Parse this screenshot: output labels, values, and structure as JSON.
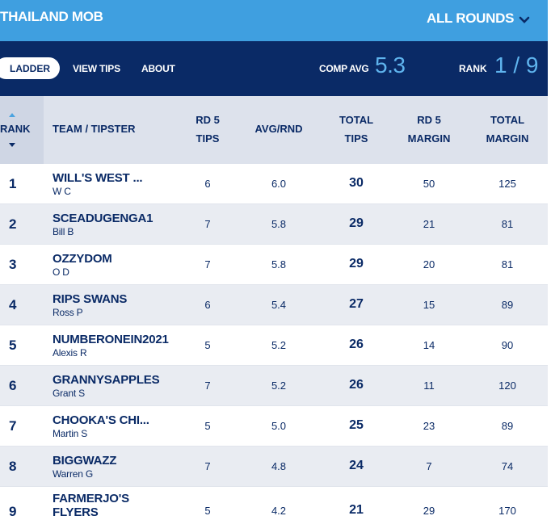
{
  "header": {
    "comp_name": "THAILAND MOB",
    "rounds_label": "ALL ROUNDS"
  },
  "nav": {
    "tabs": [
      {
        "label": "LADDER",
        "active": true
      },
      {
        "label": "VIEW TIPS",
        "active": false
      },
      {
        "label": "ABOUT",
        "active": false
      }
    ],
    "comp_avg_label": "COMP AVG",
    "comp_avg_value": "5.3",
    "rank_label": "RANK",
    "rank_value": "1 / 9"
  },
  "table": {
    "columns": {
      "rank": "RANK",
      "team": "TEAM / TIPSTER",
      "rd_tips_1": "RD 5",
      "rd_tips_2": "TIPS",
      "avg": "AVG/RND",
      "total_tips_1": "TOTAL",
      "total_tips_2": "TIPS",
      "rd_margin_1": "RD 5",
      "rd_margin_2": "MARGIN",
      "total_margin_1": "TOTAL",
      "total_margin_2": "MARGIN"
    },
    "rows": [
      {
        "rank": "1",
        "team": "WILL'S WEST ...",
        "tipster": "W C",
        "rd_tips": "6",
        "avg": "6.0",
        "total_tips": "30",
        "rd_margin": "50",
        "total_margin": "125"
      },
      {
        "rank": "2",
        "team": "SCEADUGENGA1",
        "tipster": "Bill B",
        "rd_tips": "7",
        "avg": "5.8",
        "total_tips": "29",
        "rd_margin": "21",
        "total_margin": "81"
      },
      {
        "rank": "3",
        "team": "OZZYDOM",
        "tipster": "O D",
        "rd_tips": "7",
        "avg": "5.8",
        "total_tips": "29",
        "rd_margin": "20",
        "total_margin": "81"
      },
      {
        "rank": "4",
        "team": "RIPS SWANS",
        "tipster": "Ross P",
        "rd_tips": "6",
        "avg": "5.4",
        "total_tips": "27",
        "rd_margin": "15",
        "total_margin": "89"
      },
      {
        "rank": "5",
        "team": "NUMBERONEIN2021",
        "tipster": "Alexis R",
        "rd_tips": "5",
        "avg": "5.2",
        "total_tips": "26",
        "rd_margin": "14",
        "total_margin": "90"
      },
      {
        "rank": "6",
        "team": "GRANNYSAPPLES",
        "tipster": "Grant S",
        "rd_tips": "7",
        "avg": "5.2",
        "total_tips": "26",
        "rd_margin": "11",
        "total_margin": "120"
      },
      {
        "rank": "7",
        "team": "CHOOKA'S CHI...",
        "tipster": "Martin S",
        "rd_tips": "5",
        "avg": "5.0",
        "total_tips": "25",
        "rd_margin": "23",
        "total_margin": "89"
      },
      {
        "rank": "8",
        "team": "BIGGWAZZ",
        "tipster": "Warren G",
        "rd_tips": "7",
        "avg": "4.8",
        "total_tips": "24",
        "rd_margin": "7",
        "total_margin": "74"
      },
      {
        "rank": "9",
        "team": "FARMERJO'S FLYERS",
        "tipster": "",
        "rd_tips": "5",
        "avg": "4.2",
        "total_tips": "21",
        "rd_margin": "29",
        "total_margin": "170"
      }
    ]
  },
  "colors": {
    "topbar": "#3f9fe0",
    "navbar": "#0a2a66",
    "accent": "#5fb4ee",
    "text": "#0a2a66"
  }
}
